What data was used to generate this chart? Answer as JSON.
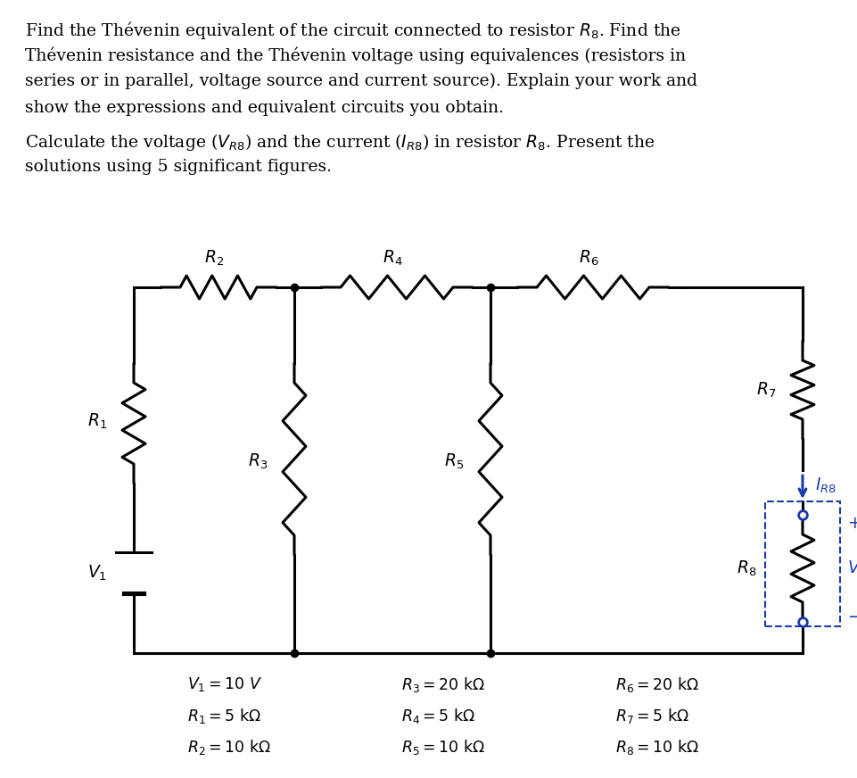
{
  "background_color": "#ffffff",
  "circuit_color": "#000000",
  "blue_color": "#1a3aaa",
  "line1": "Find the Thévenin equivalent of the circuit connected to resistor $R_8$. Find the",
  "line2": "Thévenin resistance and the Thévenin voltage using equivalences (resistors in",
  "line3": "series or in parallel, voltage source and current source). Explain your work and",
  "line4": "show the expressions and equivalent circuits you obtain.",
  "line5": "Calculate the voltage ($V_{R8}$) and the current ($I_{R8}$) in resistor $R_8$. Present the",
  "line6": "solutions using 5 significant figures."
}
